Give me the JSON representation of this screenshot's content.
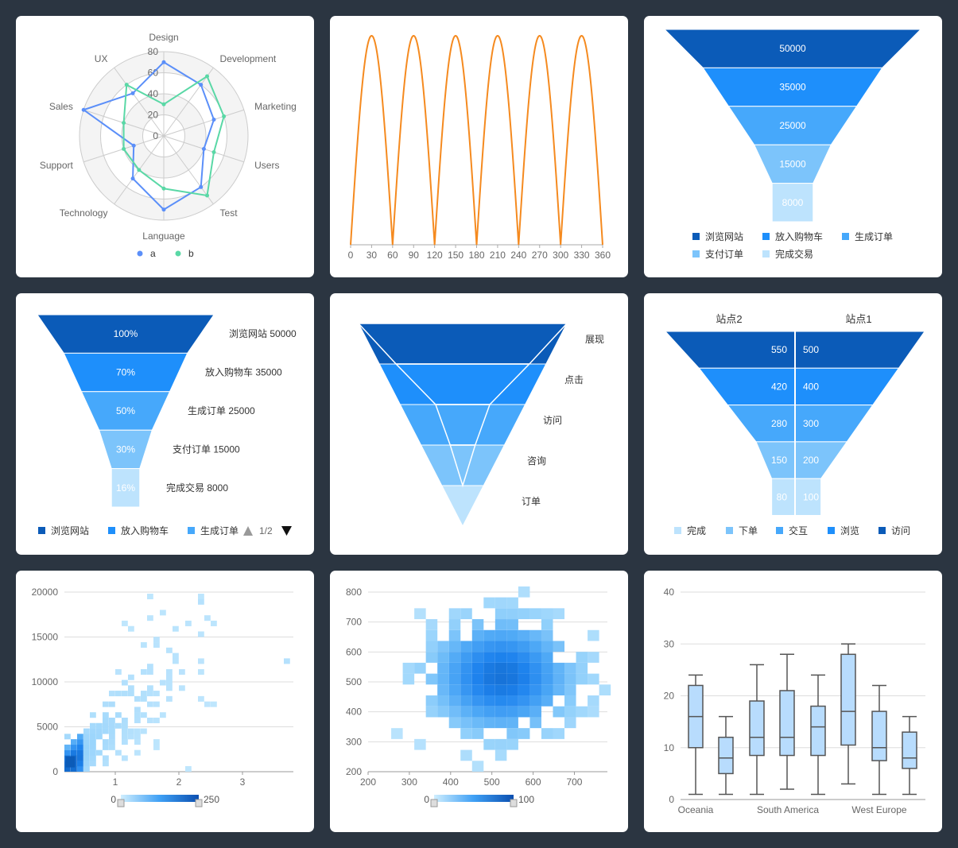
{
  "colors": {
    "page_bg": "#2b3541",
    "card_bg": "#ffffff",
    "radar_a": "#5b8ff9",
    "radar_b": "#5ad8a6",
    "wave": "#f58a1f",
    "blue_scale": [
      "#0b5bb8",
      "#1e8ffb",
      "#46a8fb",
      "#7cc4fb",
      "#bde3fd"
    ],
    "box_fill": "#b8dcfd",
    "box_stroke": "#555555",
    "grid": "#dddddd",
    "axis_text": "#888888",
    "label_text": "#555555"
  },
  "chart_data": [
    {
      "id": "radar",
      "type": "radar",
      "indicators": [
        "Design",
        "Development",
        "Marketing",
        "Users",
        "Test",
        "Language",
        "Technology",
        "Support",
        "Sales",
        "UX"
      ],
      "radial_ticks": [
        "0",
        "20",
        "40",
        "60",
        "80"
      ],
      "max": 80,
      "series": [
        {
          "name": "a",
          "color": "#5b8ff9",
          "values": [
            70,
            60,
            50,
            40,
            60,
            70,
            50,
            30,
            80,
            50
          ]
        },
        {
          "name": "b",
          "color": "#5ad8a6",
          "values": [
            30,
            70,
            60,
            50,
            70,
            50,
            40,
            40,
            40,
            60
          ]
        }
      ],
      "legend": [
        "a",
        "b"
      ]
    },
    {
      "id": "abs-sine",
      "type": "line",
      "x_ticks": [
        "0",
        "30",
        "60",
        "90",
        "120",
        "150",
        "180",
        "210",
        "240",
        "270",
        "300",
        "330",
        "360"
      ],
      "xlim": [
        0,
        360
      ],
      "ylim": [
        0,
        1
      ],
      "function": "|sin(3x)|",
      "color": "#f58a1f"
    },
    {
      "id": "funnel-basic",
      "type": "funnel",
      "stages": [
        {
          "name": "浏览网站",
          "value": 50000,
          "value_label": "50000"
        },
        {
          "name": "放入购物车",
          "value": 35000,
          "value_label": "35000"
        },
        {
          "name": "生成订单",
          "value": 25000,
          "value_label": "25000"
        },
        {
          "name": "支付订单",
          "value": 15000,
          "value_label": "15000"
        },
        {
          "name": "完成交易",
          "value": 8000,
          "value_label": "8000"
        }
      ],
      "legend": [
        "浏览网站",
        "放入购物车",
        "生成订单",
        "支付订单",
        "完成交易"
      ]
    },
    {
      "id": "funnel-percent",
      "type": "funnel",
      "stages": [
        {
          "name": "浏览网站",
          "value": 50000,
          "pct_label": "100%",
          "side_label": "浏览网站 50000"
        },
        {
          "name": "放入购物车",
          "value": 35000,
          "pct_label": "70%",
          "side_label": "放入购物车 35000"
        },
        {
          "name": "生成订单",
          "value": 25000,
          "pct_label": "50%",
          "side_label": "生成订单 25000"
        },
        {
          "name": "支付订单",
          "value": 15000,
          "pct_label": "30%",
          "side_label": "支付订单 15000"
        },
        {
          "name": "完成交易",
          "value": 8000,
          "pct_label": "16%",
          "side_label": "完成交易 8000"
        }
      ],
      "legend": [
        "浏览网站",
        "放入购物车",
        "生成订单"
      ],
      "legend_page": "1/2"
    },
    {
      "id": "funnel-compare",
      "type": "funnel",
      "stages": [
        "展现",
        "点击",
        "访问",
        "咨询",
        "订单"
      ]
    },
    {
      "id": "funnel-mirror",
      "type": "funnel",
      "columns": [
        "站点2",
        "站点1"
      ],
      "left_values": [
        "550",
        "420",
        "280",
        "150",
        "80"
      ],
      "right_values": [
        "500",
        "400",
        "300",
        "200",
        "100"
      ],
      "legend": [
        "完成",
        "下单",
        "交互",
        "浏览",
        "访问"
      ]
    },
    {
      "id": "heatmap-scatter",
      "type": "heatmap",
      "x_ticks": [
        "1",
        "2",
        "3"
      ],
      "y_ticks": [
        "0",
        "5000",
        "10000",
        "15000",
        "20000"
      ],
      "xlim": [
        0.2,
        3.8
      ],
      "ylim": [
        0,
        20000
      ],
      "visual_map": {
        "min": "0",
        "max": "250"
      }
    },
    {
      "id": "heatmap-gaussian",
      "type": "heatmap",
      "x_ticks": [
        "200",
        "300",
        "400",
        "500",
        "600",
        "700"
      ],
      "y_ticks": [
        "200",
        "300",
        "400",
        "500",
        "600",
        "700",
        "800"
      ],
      "xlim": [
        200,
        780
      ],
      "ylim": [
        200,
        800
      ],
      "visual_map": {
        "min": "0",
        "max": "100"
      }
    },
    {
      "id": "boxplot",
      "type": "boxplot",
      "y_ticks": [
        "0",
        "10",
        "20",
        "30",
        "40"
      ],
      "ylim": [
        0,
        40
      ],
      "category_labels": [
        "Oceania",
        "South America",
        "West Europe"
      ],
      "boxes": [
        {
          "min": 1,
          "q1": 10,
          "median": 16,
          "q3": 22,
          "max": 24
        },
        {
          "min": 1,
          "q1": 5,
          "median": 8,
          "q3": 12,
          "max": 16
        },
        {
          "min": 1,
          "q1": 8.5,
          "median": 12,
          "q3": 19,
          "max": 26
        },
        {
          "min": 2,
          "q1": 8.5,
          "median": 12,
          "q3": 21,
          "max": 28
        },
        {
          "min": 1,
          "q1": 8.5,
          "median": 14,
          "q3": 18,
          "max": 24
        },
        {
          "min": 3,
          "q1": 10.5,
          "median": 17,
          "q3": 28,
          "max": 30
        },
        {
          "min": 1,
          "q1": 7.5,
          "median": 10,
          "q3": 17,
          "max": 22
        },
        {
          "min": 1,
          "q1": 6,
          "median": 8,
          "q3": 13,
          "max": 16
        }
      ]
    }
  ]
}
